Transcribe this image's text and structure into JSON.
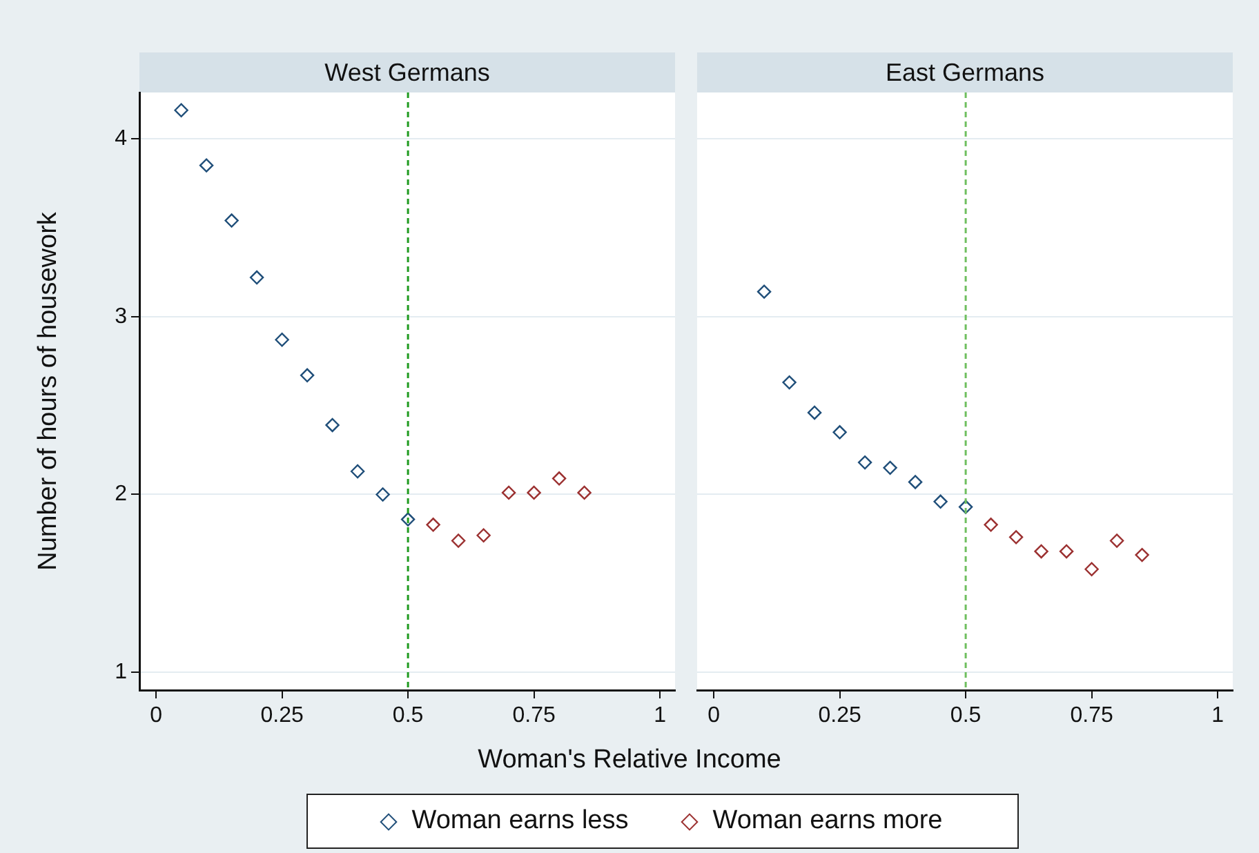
{
  "chart_data": [
    {
      "type": "scatter",
      "title": "West Germans",
      "xlabel": "Woman's Relative Income",
      "ylabel": "Number of hours of housework",
      "xlim": [
        -0.033,
        1.03
      ],
      "xticks": [
        0,
        0.25,
        0.5,
        0.75,
        1
      ],
      "ylim": [
        0.9,
        4.26
      ],
      "yticks": [
        1,
        2,
        3,
        4
      ],
      "grid": "y",
      "legend": "bottom",
      "marker": "diamond",
      "ref_lines": [
        {
          "axis": "x",
          "value": 0.5,
          "color": "#1f9a1f",
          "line_style": "dashed"
        }
      ],
      "series": [
        {
          "name": "Woman earns less",
          "color": "#1f4e79",
          "x": [
            0.05,
            0.1,
            0.15,
            0.2,
            0.25,
            0.3,
            0.35,
            0.4,
            0.45,
            0.5
          ],
          "values": [
            4.16,
            3.85,
            3.54,
            3.22,
            2.87,
            2.67,
            2.39,
            2.13,
            2.0,
            1.86
          ]
        },
        {
          "name": "Woman earns more",
          "color": "#9b3030",
          "x": [
            0.55,
            0.6,
            0.65,
            0.7,
            0.75,
            0.8,
            0.85
          ],
          "values": [
            1.83,
            1.74,
            1.77,
            2.01,
            2.01,
            2.09,
            2.01
          ]
        }
      ]
    },
    {
      "type": "scatter",
      "title": "East Germans",
      "xlim": [
        -0.033,
        1.03
      ],
      "xticks": [
        0,
        0.25,
        0.5,
        0.75,
        1
      ],
      "ylim": [
        0.9,
        4.26
      ],
      "yticks": [
        1,
        2,
        3,
        4
      ],
      "grid": "y",
      "tick_labels": "x",
      "marker": "diamond",
      "ref_lines": [
        {
          "axis": "x",
          "value": 0.5,
          "color": "#6fbf5f",
          "line_style": "dashed"
        }
      ],
      "series": [
        {
          "color": "#1f4e79",
          "x": [
            0.1,
            0.15,
            0.2,
            0.25,
            0.3,
            0.35,
            0.4,
            0.45,
            0.5
          ],
          "values": [
            3.14,
            2.63,
            2.46,
            2.35,
            2.18,
            2.15,
            2.07,
            1.96,
            1.93
          ]
        },
        {
          "color": "#9b3030",
          "x": [
            0.55,
            0.6,
            0.65,
            0.7,
            0.75,
            0.8,
            0.85
          ],
          "values": [
            1.83,
            1.76,
            1.68,
            1.68,
            1.58,
            1.74,
            1.66
          ]
        }
      ]
    }
  ]
}
